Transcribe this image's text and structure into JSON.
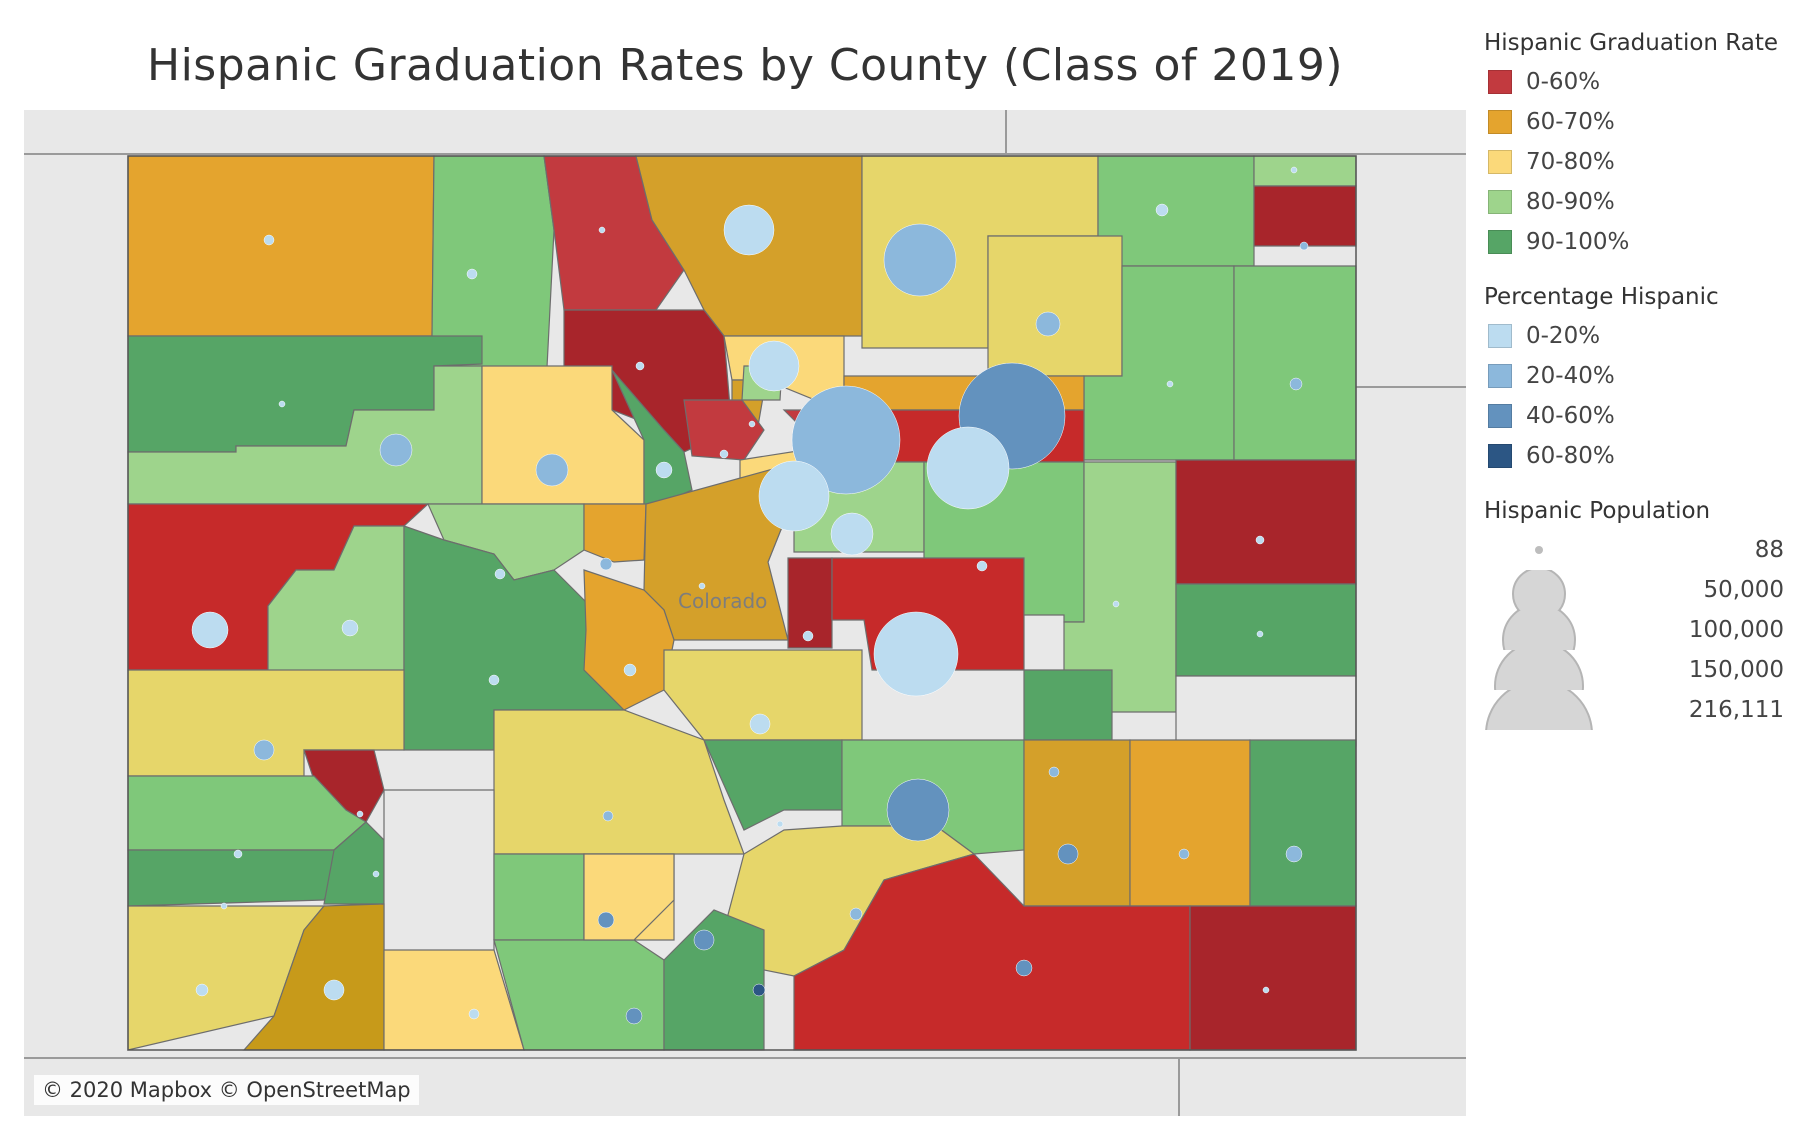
{
  "title": "Hispanic Graduation Rates by County (Class of 2019)",
  "attribution": "© 2020 Mapbox © OpenStreetMap",
  "map_label": "Colorado",
  "legend": {
    "graduation": {
      "title": "Hispanic Graduation Rate",
      "items": [
        {
          "label": "0-60%",
          "color": "#c23a3f"
        },
        {
          "label": "60-70%",
          "color": "#e4a42e"
        },
        {
          "label": "70-80%",
          "color": "#fbd97a"
        },
        {
          "label": "80-90%",
          "color": "#9ed48c"
        },
        {
          "label": "90-100%",
          "color": "#56a566"
        }
      ]
    },
    "percentage": {
      "title": "Percentage Hispanic",
      "items": [
        {
          "label": "0-20%",
          "color": "#bcdcf0"
        },
        {
          "label": "20-40%",
          "color": "#8cb8dc"
        },
        {
          "label": "40-60%",
          "color": "#6392be"
        },
        {
          "label": "60-80%",
          "color": "#2c5684"
        }
      ]
    },
    "population": {
      "title": "Hispanic Population",
      "items": [
        {
          "label": "88"
        },
        {
          "label": "50,000"
        },
        {
          "label": "100,000"
        },
        {
          "label": "150,000"
        },
        {
          "label": "216,111"
        }
      ]
    }
  }
}
